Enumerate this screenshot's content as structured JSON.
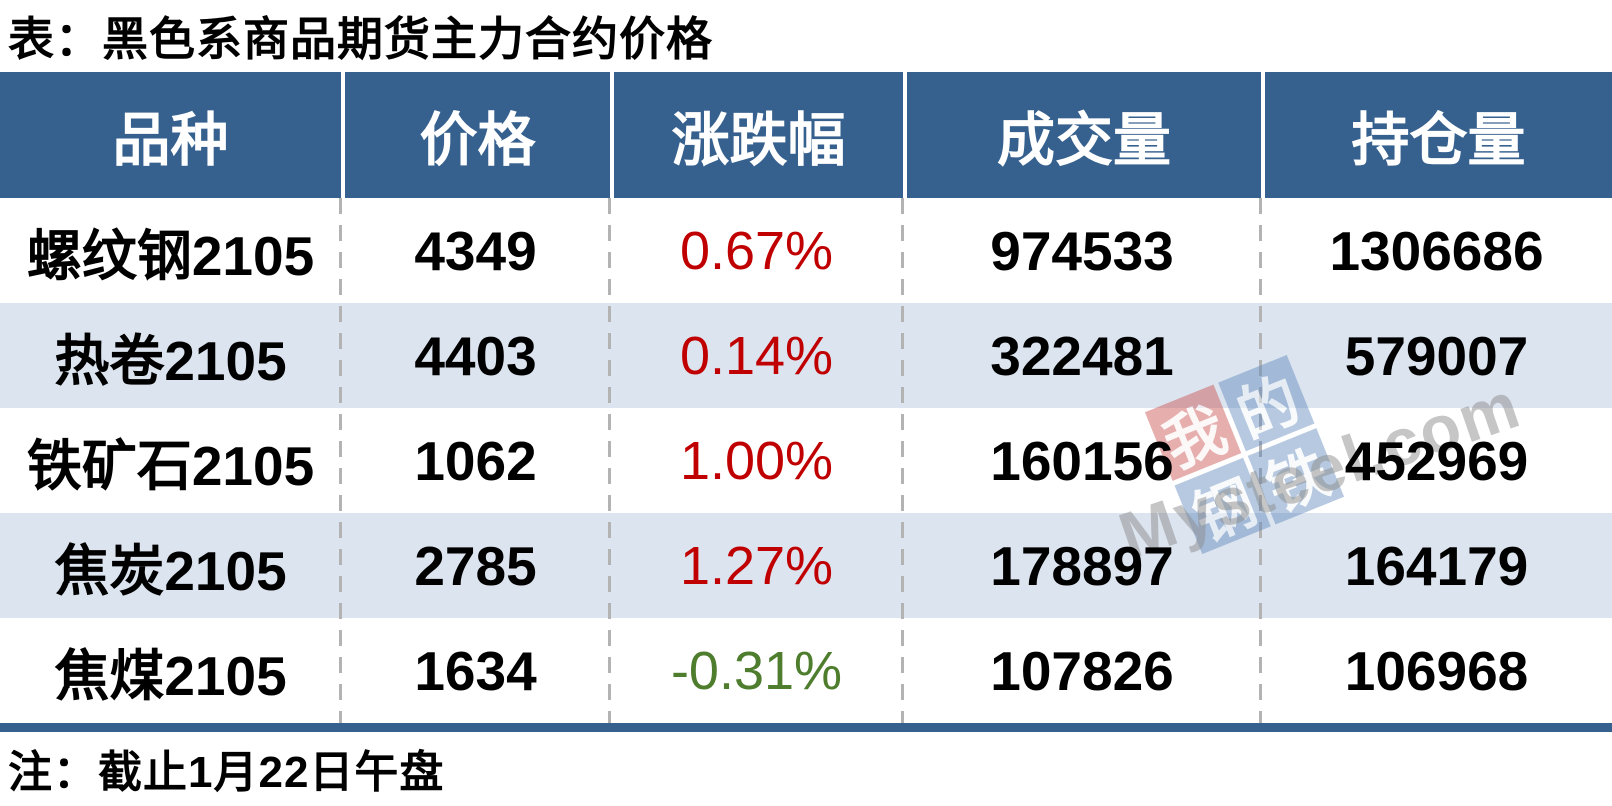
{
  "title": "表：黑色系商品期货主力合约价格",
  "note": "注：截止1月22日午盘",
  "table": {
    "headers": [
      "品种",
      "价格",
      "涨跌幅",
      "成交量",
      "持仓量"
    ],
    "rows": [
      {
        "variety": "螺纹钢2105",
        "price": "4349",
        "change": "0.67%",
        "direction": "up",
        "volume": "974533",
        "open_interest": "1306686"
      },
      {
        "variety": "热卷2105",
        "price": "4403",
        "change": "0.14%",
        "direction": "up",
        "volume": "322481",
        "open_interest": "579007"
      },
      {
        "variety": "铁矿石2105",
        "price": "1062",
        "change": "1.00%",
        "direction": "up",
        "volume": "160156",
        "open_interest": "452969"
      },
      {
        "variety": "焦炭2105",
        "price": "2785",
        "change": "1.27%",
        "direction": "up",
        "volume": "178897",
        "open_interest": "164179"
      },
      {
        "variety": "焦煤2105",
        "price": "1634",
        "change": "-0.31%",
        "direction": "down",
        "volume": "107826",
        "open_interest": "106968"
      }
    ]
  },
  "watermark": {
    "squares": [
      {
        "char": "我"
      },
      {
        "char": "的"
      },
      {
        "char": "钢"
      },
      {
        "char": "铁"
      }
    ],
    "brand": "Mysteel.com"
  },
  "colors": {
    "header-bg": "#36618E",
    "row-alt-bg": "#DCE4EF",
    "up-red": "#C00000",
    "down-green": "#4E7D2E",
    "divider-gray": "#B3B3B3",
    "wm-red": "#C94F4C",
    "wm-blue": "#5E88BC",
    "wm-text": "#8E8E8E"
  }
}
